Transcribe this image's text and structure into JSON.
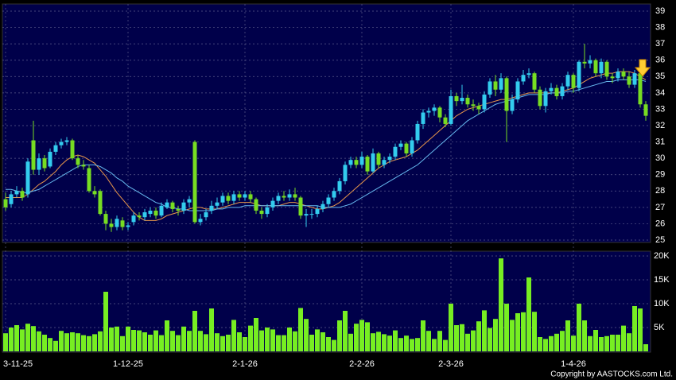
{
  "chart_data": {
    "type": "candlestick",
    "categories": [
      "3-11-25",
      null,
      null,
      null,
      null,
      null,
      null,
      null,
      null,
      null,
      null,
      null,
      null,
      null,
      null,
      null,
      null,
      null,
      null,
      null,
      null,
      null,
      "1-12-25",
      null,
      null,
      null,
      null,
      null,
      null,
      null,
      null,
      null,
      null,
      null,
      null,
      null,
      null,
      null,
      null,
      null,
      null,
      null,
      null,
      "2-1-26",
      null,
      null,
      null,
      null,
      null,
      null,
      null,
      null,
      null,
      null,
      null,
      null,
      null,
      null,
      null,
      null,
      null,
      null,
      null,
      null,
      "2-2-26",
      null,
      null,
      null,
      null,
      null,
      null,
      null,
      null,
      null,
      null,
      null,
      null,
      null,
      null,
      null,
      "2-3-26",
      null,
      null,
      null,
      null,
      null,
      null,
      null,
      null,
      null,
      null,
      null,
      null,
      null,
      null,
      null,
      null,
      null,
      null,
      null,
      null,
      null,
      "1-4-26",
      null,
      null,
      null,
      null,
      null,
      null,
      null,
      null,
      null,
      null,
      null,
      null,
      null
    ],
    "open": [
      27.5,
      27.2,
      27.8,
      28.0,
      27.8,
      31.1,
      29.3,
      30.0,
      29.5,
      30.4,
      30.8,
      31.0,
      31.1,
      30.0,
      29.6,
      29.4,
      28.0,
      28.0,
      26.6,
      26.0,
      25.8,
      26.2,
      25.8,
      26.1,
      26.5,
      26.4,
      26.6,
      26.8,
      26.5,
      27.0,
      27.3,
      26.9,
      26.8,
      27.3,
      31.0,
      26.1,
      26.4,
      26.8,
      27.1,
      27.3,
      27.7,
      27.4,
      27.8,
      27.6,
      27.8,
      27.5,
      26.8,
      26.6,
      27.0,
      27.4,
      27.7,
      27.6,
      27.8,
      27.6,
      26.5,
      26.6,
      26.6,
      26.9,
      27.2,
      27.6,
      28.0,
      28.6,
      29.6,
      29.9,
      29.6,
      30.1,
      29.2,
      30.3,
      29.6,
      29.9,
      30.1,
      30.7,
      30.9,
      30.3,
      31.1,
      32.1,
      32.8,
      32.9,
      33.1,
      32.5,
      32.1,
      33.8,
      33.5,
      33.7,
      33.3,
      33.2,
      33.0,
      33.9,
      34.7,
      34.2,
      34.9,
      32.9,
      33.6,
      34.7,
      35.1,
      35.2,
      34.2,
      33.2,
      34.1,
      34.3,
      33.8,
      34.4,
      35.1,
      34.3,
      35.9,
      35.8,
      36.0,
      35.2,
      35.9,
      35.0,
      34.9,
      35.3,
      35.0,
      34.5,
      35.2,
      33.3
    ],
    "high": [
      27.9,
      28.0,
      28.3,
      28.2,
      30.0,
      32.3,
      30.3,
      30.2,
      30.6,
      31.0,
      31.2,
      31.3,
      31.2,
      30.2,
      29.9,
      29.6,
      28.3,
      28.1,
      26.8,
      26.3,
      26.5,
      26.4,
      26.1,
      26.7,
      26.7,
      26.9,
      27.0,
      27.0,
      27.3,
      27.5,
      27.4,
      27.1,
      27.5,
      27.7,
      31.1,
      26.6,
      26.9,
      27.4,
      27.6,
      27.9,
      27.9,
      28.0,
      28.0,
      28.0,
      28.0,
      27.6,
      27.0,
      27.2,
      27.6,
      27.9,
      28.0,
      28.1,
      28.2,
      27.7,
      26.9,
      26.9,
      27.1,
      27.4,
      27.8,
      28.2,
      28.8,
      29.8,
      30.1,
      30.1,
      30.4,
      30.2,
      30.6,
      30.4,
      30.1,
      30.3,
      30.9,
      31.1,
      31.0,
      31.3,
      32.3,
      33.0,
      33.1,
      33.3,
      33.2,
      32.7,
      34.2,
      34.0,
      34.5,
      33.9,
      33.6,
      33.4,
      34.1,
      34.9,
      35.1,
      35.2,
      35.0,
      33.9,
      34.9,
      35.4,
      35.5,
      35.3,
      34.4,
      34.3,
      34.6,
      34.5,
      34.6,
      35.3,
      35.2,
      36.0,
      37.0,
      36.3,
      36.1,
      36.1,
      36.0,
      35.2,
      35.5,
      35.5,
      35.3,
      35.4,
      35.3,
      33.5
    ],
    "low": [
      26.8,
      27.0,
      27.6,
      27.4,
      27.6,
      29.0,
      29.0,
      29.2,
      29.4,
      30.2,
      30.6,
      30.8,
      29.9,
      29.4,
      29.3,
      27.9,
      27.6,
      26.5,
      25.6,
      25.5,
      25.6,
      25.6,
      25.6,
      25.9,
      26.2,
      26.2,
      26.4,
      26.3,
      26.4,
      26.9,
      26.7,
      26.5,
      26.6,
      27.0,
      26.0,
      25.9,
      26.2,
      26.6,
      26.9,
      27.1,
      27.2,
      27.2,
      27.4,
      27.4,
      27.3,
      26.6,
      26.3,
      26.4,
      26.8,
      27.2,
      27.4,
      27.4,
      27.4,
      26.3,
      25.8,
      26.3,
      26.4,
      26.7,
      27.0,
      27.4,
      27.8,
      28.4,
      29.4,
      29.4,
      29.4,
      29.0,
      29.1,
      29.4,
      29.4,
      29.7,
      29.9,
      30.5,
      30.1,
      30.1,
      30.9,
      31.8,
      32.5,
      32.6,
      32.2,
      31.9,
      32.0,
      33.2,
      33.3,
      33.1,
      32.9,
      32.7,
      32.8,
      33.7,
      33.8,
      34.0,
      31.0,
      32.7,
      33.4,
      34.5,
      34.9,
      34.0,
      33.0,
      32.8,
      33.9,
      33.6,
      33.6,
      34.2,
      34.0,
      34.1,
      35.5,
      35.5,
      35.0,
      34.9,
      34.8,
      34.6,
      34.7,
      34.8,
      34.3,
      34.3,
      33.1,
      32.3
    ],
    "close": [
      27.0,
      27.8,
      28.0,
      27.6,
      29.8,
      29.3,
      30.0,
      29.4,
      30.4,
      30.8,
      31.0,
      31.1,
      30.0,
      29.6,
      29.5,
      28.0,
      27.8,
      26.6,
      26.0,
      25.8,
      26.3,
      25.8,
      25.9,
      26.5,
      26.4,
      26.7,
      26.8,
      26.5,
      27.1,
      27.3,
      26.9,
      26.8,
      27.3,
      27.5,
      26.1,
      26.3,
      26.7,
      27.1,
      27.3,
      27.7,
      27.4,
      27.8,
      27.6,
      27.8,
      27.5,
      26.8,
      26.6,
      27.0,
      27.4,
      27.7,
      27.6,
      27.8,
      27.6,
      26.5,
      26.6,
      26.6,
      26.9,
      27.2,
      27.6,
      28.0,
      28.6,
      29.6,
      29.9,
      29.6,
      30.1,
      29.2,
      30.3,
      29.6,
      29.9,
      30.1,
      30.7,
      30.9,
      30.3,
      31.1,
      32.1,
      32.8,
      32.9,
      33.1,
      32.5,
      32.1,
      33.8,
      33.5,
      33.7,
      33.3,
      33.2,
      33.0,
      33.9,
      34.7,
      34.2,
      34.9,
      32.9,
      33.6,
      34.7,
      35.1,
      35.2,
      34.2,
      33.2,
      34.1,
      34.3,
      33.8,
      34.4,
      35.1,
      34.3,
      35.9,
      35.8,
      36.0,
      35.2,
      35.9,
      35.0,
      34.9,
      35.3,
      35.0,
      34.5,
      35.2,
      33.3,
      32.6
    ],
    "up_color": "#33ccee",
    "down_color": "#77dd22",
    "moving_averages": [
      {
        "color": "#e8964a",
        "values": [
          27.6,
          27.6,
          27.6,
          27.6,
          27.8,
          28.1,
          28.4,
          28.6,
          28.9,
          29.2,
          29.6,
          29.9,
          30.1,
          30.2,
          30.1,
          29.9,
          29.7,
          29.3,
          28.9,
          28.4,
          27.9,
          27.5,
          27.1,
          26.7,
          26.4,
          26.2,
          26.2,
          26.2,
          26.3,
          26.5,
          26.6,
          26.7,
          26.8,
          26.9,
          27.0,
          27.0,
          26.9,
          26.9,
          26.9,
          27.0,
          27.1,
          27.2,
          27.3,
          27.3,
          27.3,
          27.2,
          27.1,
          27.1,
          27.1,
          27.1,
          27.2,
          27.3,
          27.3,
          27.2,
          27.1,
          27.0,
          26.9,
          26.9,
          27.0,
          27.1,
          27.3,
          27.6,
          27.9,
          28.2,
          28.5,
          28.8,
          29.1,
          29.4,
          29.6,
          29.8,
          29.9,
          30.0,
          30.1,
          30.3,
          30.5,
          30.8,
          31.1,
          31.4,
          31.7,
          32.0,
          32.3,
          32.6,
          32.8,
          33.0,
          33.1,
          33.2,
          33.3,
          33.4,
          33.5,
          33.6,
          33.6,
          33.7,
          33.8,
          33.9,
          34.0,
          34.0,
          34.0,
          34.0,
          34.0,
          34.0,
          34.1,
          34.2,
          34.3,
          34.5,
          34.7,
          34.9,
          35.0,
          35.1,
          35.2,
          35.2,
          35.3,
          35.3,
          35.3,
          35.2,
          35.0,
          34.8
        ]
      },
      {
        "color": "#66b8ee",
        "values": [
          28.1,
          28.1,
          28.0,
          27.9,
          27.9,
          28.0,
          28.1,
          28.3,
          28.5,
          28.7,
          28.9,
          29.1,
          29.3,
          29.5,
          29.6,
          29.6,
          29.6,
          29.5,
          29.3,
          29.1,
          28.8,
          28.6,
          28.3,
          28.1,
          27.9,
          27.7,
          27.5,
          27.3,
          27.2,
          27.0,
          27.0,
          26.9,
          26.9,
          26.8,
          26.8,
          26.8,
          26.8,
          26.8,
          26.9,
          26.9,
          27.0,
          27.0,
          27.0,
          27.1,
          27.1,
          27.1,
          27.1,
          27.1,
          27.1,
          27.1,
          27.1,
          27.1,
          27.1,
          27.1,
          27.1,
          27.1,
          27.1,
          27.0,
          27.0,
          27.0,
          27.0,
          27.1,
          27.2,
          27.4,
          27.6,
          27.8,
          28.0,
          28.2,
          28.4,
          28.6,
          28.8,
          29.0,
          29.2,
          29.4,
          29.6,
          29.9,
          30.2,
          30.5,
          30.8,
          31.1,
          31.4,
          31.7,
          32.0,
          32.3,
          32.5,
          32.7,
          32.9,
          33.1,
          33.3,
          33.4,
          33.5,
          33.6,
          33.7,
          33.8,
          33.9,
          33.9,
          33.9,
          33.9,
          34.0,
          34.0,
          34.0,
          34.1,
          34.1,
          34.2,
          34.3,
          34.4,
          34.5,
          34.6,
          34.7,
          34.7,
          34.8,
          34.8,
          34.8,
          34.8,
          34.8,
          34.7
        ]
      }
    ],
    "ylim": [
      25,
      39
    ],
    "yticks": [
      25,
      26,
      27,
      28,
      29,
      30,
      31,
      32,
      33,
      34,
      35,
      36,
      37,
      38,
      39
    ],
    "grid": true,
    "volume": {
      "color": "#77ee22",
      "ylim": [
        0,
        20000
      ],
      "yticks": [
        {
          "value": 5000,
          "label": "5K"
        },
        {
          "value": 10000,
          "label": "10K"
        },
        {
          "value": 15000,
          "label": "15K"
        },
        {
          "value": 20000,
          "label": "20K"
        }
      ],
      "values": [
        3800,
        5000,
        5500,
        4600,
        5800,
        5300,
        4200,
        3500,
        2800,
        2200,
        4300,
        3800,
        4000,
        3800,
        3400,
        3200,
        3600,
        4200,
        12500,
        5000,
        5200,
        3200,
        5200,
        4500,
        4400,
        4000,
        3500,
        4400,
        3400,
        6500,
        4300,
        3400,
        5200,
        4300,
        8500,
        4300,
        3600,
        9000,
        3800,
        3200,
        3500,
        6600,
        4000,
        3000,
        5400,
        7000,
        4400,
        5000,
        4600,
        3400,
        3400,
        5000,
        4200,
        9100,
        6800,
        3500,
        4600,
        4000,
        3000,
        2400,
        6500,
        8500,
        3700,
        5800,
        6600,
        6100,
        3800,
        4100,
        3600,
        3300,
        4400,
        2800,
        3300,
        2600,
        2800,
        6500,
        4300,
        2600,
        4300,
        2400,
        10000,
        5500,
        5700,
        3700,
        4400,
        6300,
        8600,
        4900,
        6800,
        19500,
        10000,
        6600,
        8000,
        8200,
        15500,
        8300,
        3000,
        2600,
        3200,
        3700,
        4300,
        6500,
        3300,
        10000,
        6500,
        3200,
        4500,
        3000,
        3200,
        3500,
        3500,
        5400,
        3800,
        9500,
        9000,
        1500
      ]
    },
    "copyright": "Copyright by AASTOCKS.com Ltd."
  }
}
